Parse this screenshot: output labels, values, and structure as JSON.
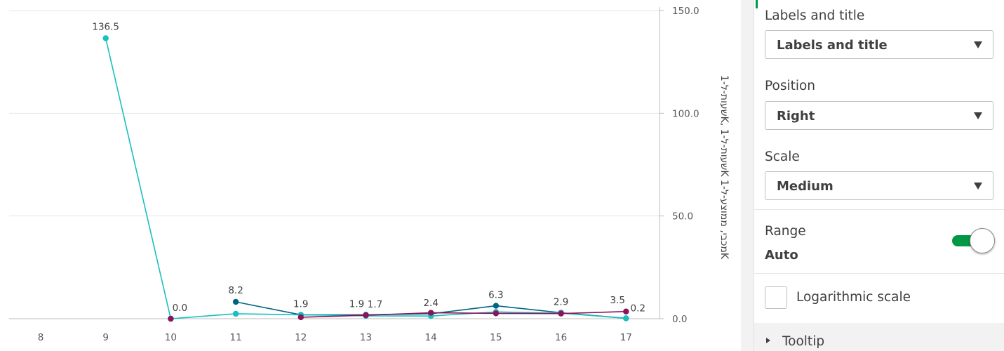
{
  "chart_data": {
    "type": "line",
    "categories": [
      "8",
      "9",
      "10",
      "11",
      "12",
      "13",
      "14",
      "15",
      "16",
      "17"
    ],
    "ylim": [
      0,
      150
    ],
    "y_ticks": [
      "0.0",
      "50.0",
      "100.0",
      "150.0"
    ],
    "y_axis_position": "right",
    "y_axis_title": "שעות-ל-1K, שעות-ל-1K מכבי, ממוצע-ל-1K",
    "grid": true,
    "series": [
      {
        "color": "#006580",
        "values": [
          null,
          null,
          null,
          8.2,
          1.9,
          1.9,
          2.4,
          6.3,
          2.9,
          0.2
        ]
      },
      {
        "color": "#1ABFBF",
        "values": [
          null,
          136.5,
          0.0,
          2.4,
          1.9,
          1.4,
          1.3,
          3.3,
          2.7,
          0.2
        ]
      },
      {
        "color": "#8A1559",
        "values": [
          null,
          null,
          0.0,
          null,
          0.7,
          1.7,
          2.9,
          2.6,
          2.5,
          3.5
        ]
      }
    ],
    "data_labels": [
      {
        "x": "9",
        "y": 136.5,
        "text": "136.5"
      },
      {
        "x": "10",
        "y": 0.0,
        "text": "0.0"
      },
      {
        "x": "11",
        "y": 8.2,
        "text": "8.2"
      },
      {
        "x": "12",
        "y": 1.9,
        "text": "1.9"
      },
      {
        "x": "13",
        "y": 1.9,
        "text": "1.9"
      },
      {
        "x": "13",
        "y": 1.7,
        "text": "1.7"
      },
      {
        "x": "14",
        "y": 2.4,
        "text": "2.4"
      },
      {
        "x": "15",
        "y": 6.3,
        "text": "6.3"
      },
      {
        "x": "16",
        "y": 2.9,
        "text": "2.9"
      },
      {
        "x": "17",
        "y": 3.5,
        "text": "3.5"
      },
      {
        "x": "17",
        "y": 0.2,
        "text": "0.2"
      }
    ]
  },
  "panel": {
    "labels_section": {
      "label": "Labels and title",
      "selected": "Labels and title"
    },
    "position": {
      "label": "Position",
      "selected": "Right"
    },
    "scale": {
      "label": "Scale",
      "selected": "Medium"
    },
    "range": {
      "label": "Range",
      "value": "Auto",
      "toggle_on": true
    },
    "logarithmic": {
      "label": "Logarithmic scale",
      "checked": false
    },
    "tooltip": {
      "label": "Tooltip"
    },
    "colors": {
      "accent": "#009845"
    }
  }
}
